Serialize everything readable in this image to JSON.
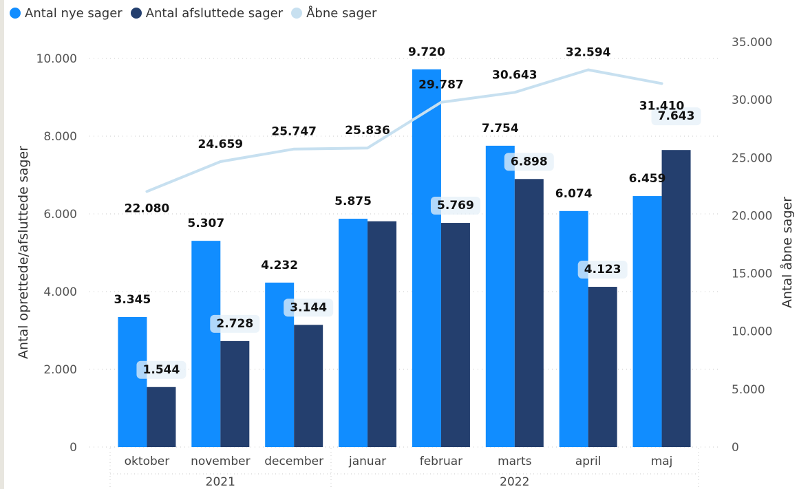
{
  "legend": [
    {
      "label": "Antal nye sager",
      "color": "#118dff"
    },
    {
      "label": "Antal afsluttede sager",
      "color": "#12239e"
    },
    {
      "label": "Åbne sager",
      "color": "#c7e0f0"
    }
  ],
  "chart_data": {
    "type": "bar",
    "categories": [
      "oktober",
      "november",
      "december",
      "januar",
      "februar",
      "marts",
      "april",
      "maj"
    ],
    "year_labels": [
      "2021",
      "2022"
    ],
    "series": [
      {
        "name": "Antal nye sager",
        "axis": "left",
        "type": "bar",
        "color": "#118dff",
        "values": [
          3345,
          5307,
          4232,
          5875,
          9720,
          7754,
          6074,
          6459
        ],
        "labels": [
          "3.345",
          "5.307",
          "4.232",
          "5.875",
          "9.720",
          "7.754",
          "6.074",
          "6.459"
        ]
      },
      {
        "name": "Antal afsluttede sager",
        "axis": "left",
        "type": "bar",
        "color": "#243f6e",
        "values": [
          1544,
          2728,
          3144,
          5810,
          5769,
          6898,
          4123,
          7643
        ],
        "labels": [
          "1.544",
          "2.728",
          "3.144",
          "",
          "5.769",
          "6.898",
          "4.123",
          "7.643"
        ]
      },
      {
        "name": "Åbne sager",
        "axis": "right",
        "type": "line",
        "color": "#c7e0f0",
        "values": [
          22080,
          24659,
          25747,
          25836,
          29787,
          30643,
          32594,
          31410
        ],
        "labels": [
          "22.080",
          "24.659",
          "25.747",
          "25.836",
          "29.787",
          "30.643",
          "32.594",
          "31.410"
        ]
      }
    ],
    "ylabel": "Antal oprettede/afsluttede sager",
    "ylabel_right": "Antal åbne sager",
    "ylim": [
      0,
      10000
    ],
    "ylim_right": [
      0,
      35000
    ],
    "yticks": [
      "0",
      "2.000",
      "4.000",
      "6.000",
      "8.000",
      "10.000"
    ],
    "yticks_right": [
      "0",
      "5.000",
      "10.000",
      "15.000",
      "20.000",
      "25.000",
      "30.000",
      "35.000"
    ],
    "grid": true,
    "legend_position": "top-left"
  }
}
